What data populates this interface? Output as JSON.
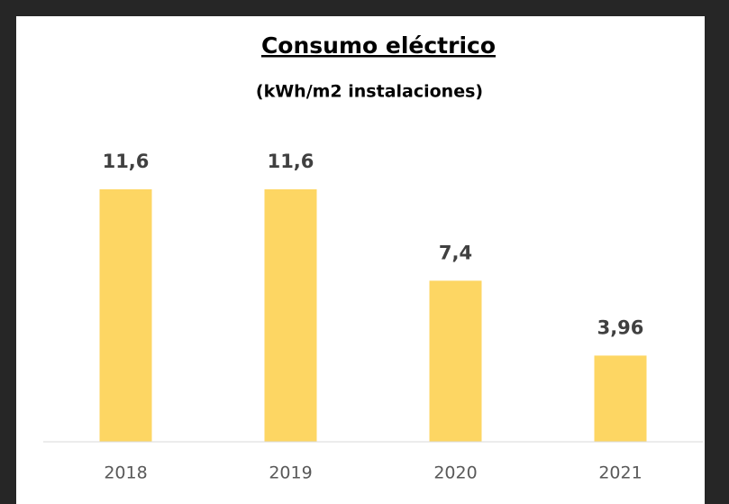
{
  "chart_data": {
    "type": "bar",
    "title": "Consumo eléctrico",
    "subtitle": "(kWh/m2 instalaciones)",
    "categories": [
      "2018",
      "2019",
      "2020",
      "2021"
    ],
    "values": [
      11.6,
      11.6,
      7.4,
      3.96
    ],
    "value_labels": [
      "11,6",
      "11,6",
      "7,4",
      "3,96"
    ],
    "color": "#fdd663",
    "ylim": [
      0,
      14
    ],
    "grid": false
  }
}
